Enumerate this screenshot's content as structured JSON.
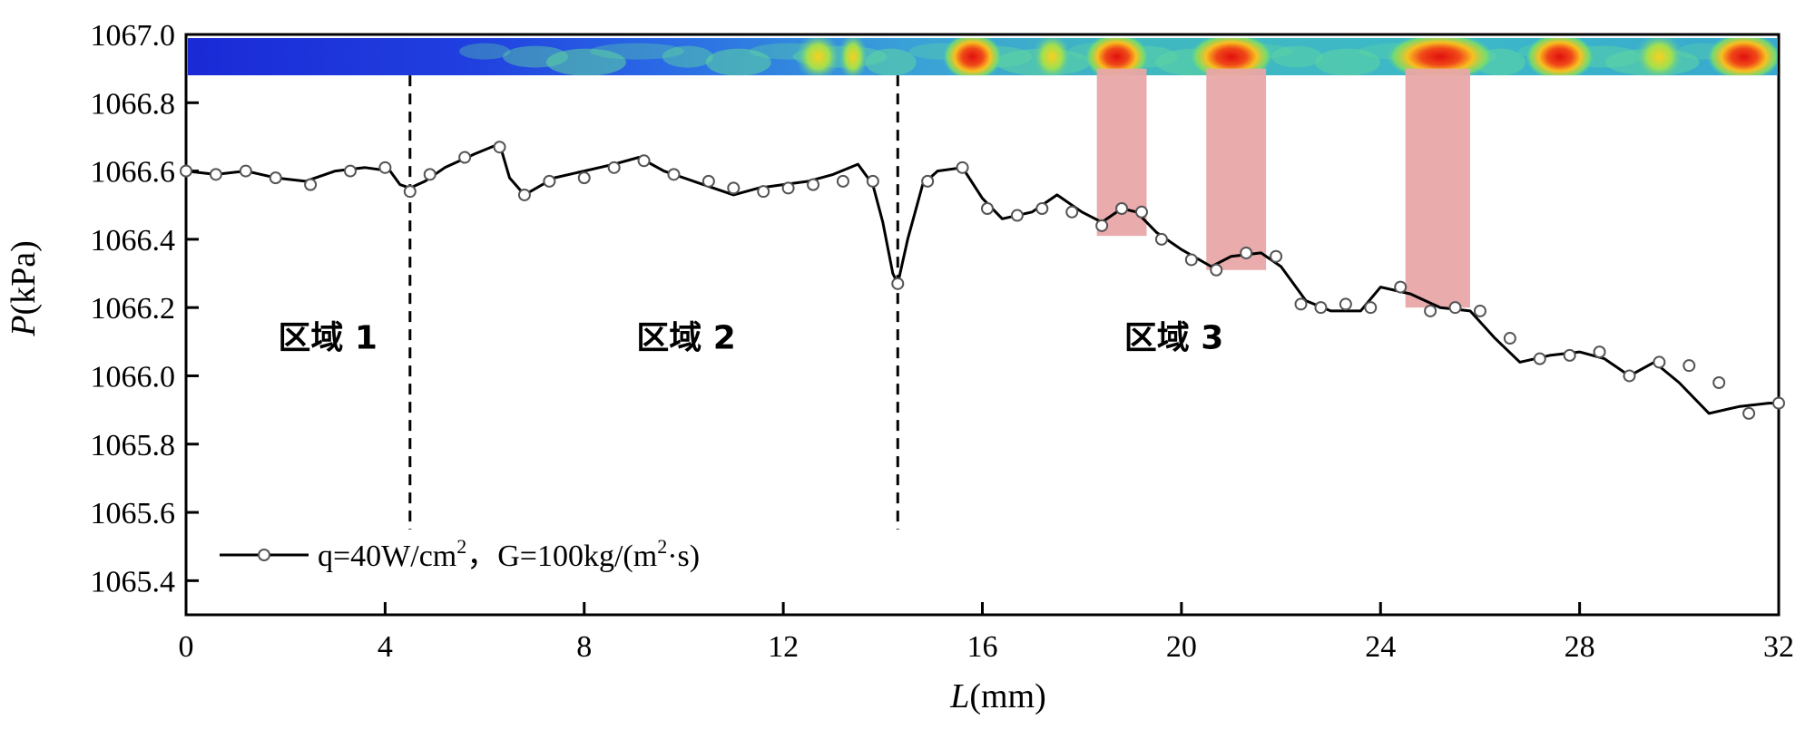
{
  "chart_data": {
    "type": "line",
    "xlabel_var": "L",
    "xlabel_unit": "(mm)",
    "ylabel_var": "P",
    "ylabel_unit": "(kPa)",
    "xlim": [
      0,
      32
    ],
    "ylim": [
      1065.3,
      1067.0
    ],
    "x_ticks": [
      0,
      4,
      8,
      12,
      16,
      20,
      24,
      28,
      32
    ],
    "x_tick_labels": [
      "0",
      "4",
      "8",
      "12",
      "16",
      "20",
      "24",
      "28",
      "32"
    ],
    "y_ticks": [
      1065.4,
      1065.6,
      1065.8,
      1066.0,
      1066.2,
      1066.4,
      1066.6,
      1066.8,
      1067.0
    ],
    "y_tick_labels": [
      "1065.4",
      "1065.6",
      "1065.8",
      "1066.0",
      "1066.2",
      "1066.4",
      "1066.6",
      "1066.8",
      "1067.0"
    ],
    "grid": false,
    "legend": {
      "position": "bottom-left",
      "label_main": "q=40W/cm",
      "label_sup1": "2",
      "label_mid": "，G=100kg/(m",
      "label_sup2": "2",
      "label_end": "·s)"
    },
    "series": [
      {
        "name": "q=40W/cm2，G=100kg/(m2·s)",
        "color": "#000000",
        "marker": "open-circle",
        "x": [
          0.0,
          0.6,
          1.2,
          1.8,
          2.4,
          3.0,
          3.6,
          4.1,
          4.3,
          4.5,
          4.8,
          5.2,
          5.8,
          6.3,
          6.5,
          6.8,
          7.4,
          8.0,
          8.6,
          9.1,
          9.6,
          10.2,
          10.6,
          11.0,
          11.5,
          12.0,
          12.5,
          13.0,
          13.5,
          13.8,
          14.0,
          14.2,
          14.3,
          14.5,
          14.8,
          15.1,
          15.6,
          16.0,
          16.4,
          17.0,
          17.5,
          18.0,
          18.4,
          18.8,
          19.1,
          19.5,
          20.0,
          20.6,
          21.0,
          21.6,
          22.0,
          22.5,
          23.0,
          23.6,
          24.0,
          24.6,
          25.2,
          25.8,
          26.3,
          26.8,
          27.4,
          28.0,
          28.5,
          29.0,
          29.5,
          30.0,
          30.6,
          31.2,
          31.8,
          32.0
        ],
        "y": [
          1066.6,
          1066.59,
          1066.6,
          1066.58,
          1066.57,
          1066.6,
          1066.61,
          1066.6,
          1066.56,
          1066.55,
          1066.57,
          1066.61,
          1066.65,
          1066.68,
          1066.58,
          1066.53,
          1066.58,
          1066.6,
          1066.62,
          1066.64,
          1066.6,
          1066.57,
          1066.55,
          1066.53,
          1066.55,
          1066.56,
          1066.57,
          1066.59,
          1066.62,
          1066.56,
          1066.45,
          1066.3,
          1066.27,
          1066.4,
          1066.56,
          1066.6,
          1066.61,
          1066.52,
          1066.46,
          1066.48,
          1066.53,
          1066.48,
          1066.45,
          1066.49,
          1066.48,
          1066.42,
          1066.37,
          1066.32,
          1066.35,
          1066.36,
          1066.32,
          1066.22,
          1066.19,
          1066.19,
          1066.26,
          1066.24,
          1066.2,
          1066.19,
          1066.11,
          1066.04,
          1066.06,
          1066.07,
          1066.05,
          1066.0,
          1066.04,
          1065.98,
          1065.89,
          1065.91,
          1065.92,
          1065.92
        ],
        "marker_x": [
          0.0,
          0.6,
          1.2,
          1.8,
          2.5,
          3.3,
          4.0,
          4.5,
          4.9,
          5.6,
          6.3,
          6.8,
          7.3,
          8.0,
          8.6,
          9.2,
          9.8,
          10.5,
          11.0,
          11.6,
          12.1,
          12.6,
          13.2,
          13.8,
          14.3,
          14.9,
          15.6,
          16.1,
          16.7,
          17.2,
          17.8,
          18.4,
          18.8,
          19.2,
          19.6,
          20.2,
          20.7,
          21.3,
          21.9,
          22.4,
          22.8,
          23.3,
          23.8,
          24.4,
          25.0,
          25.5,
          26.0,
          26.6,
          27.2,
          27.8,
          28.4,
          29.0,
          29.6,
          30.2,
          30.8,
          31.4,
          32.0
        ],
        "marker_y": [
          1066.6,
          1066.59,
          1066.6,
          1066.58,
          1066.56,
          1066.6,
          1066.61,
          1066.54,
          1066.59,
          1066.64,
          1066.67,
          1066.53,
          1066.57,
          1066.58,
          1066.61,
          1066.63,
          1066.59,
          1066.57,
          1066.55,
          1066.54,
          1066.55,
          1066.56,
          1066.57,
          1066.57,
          1066.27,
          1066.57,
          1066.61,
          1066.49,
          1066.47,
          1066.49,
          1066.48,
          1066.44,
          1066.49,
          1066.48,
          1066.4,
          1066.34,
          1066.31,
          1066.36,
          1066.35,
          1066.21,
          1066.2,
          1066.21,
          1066.2,
          1066.26,
          1066.19,
          1066.2,
          1066.19,
          1066.11,
          1066.05,
          1066.06,
          1066.07,
          1066.0,
          1066.04,
          1066.03,
          1065.98,
          1065.89,
          1065.92
        ],
        "hidden_note": ""
      }
    ],
    "region_dividers_x": [
      4.5,
      14.3
    ],
    "region_labels": [
      {
        "text": "区域 1",
        "x": 2.3,
        "y": 1066.08
      },
      {
        "text": "区域 2",
        "x": 9.5,
        "y": 1066.08
      },
      {
        "text": "区域 3",
        "x": 19.3,
        "y": 1066.08
      }
    ],
    "highlight_bands": [
      {
        "x0": 18.3,
        "x1": 19.3,
        "y0": 1066.41,
        "y1": 1066.9,
        "color": "#e8a6a6"
      },
      {
        "x0": 20.5,
        "x1": 21.7,
        "y0": 1066.31,
        "y1": 1066.9,
        "color": "#e8a6a6"
      },
      {
        "x0": 24.5,
        "x1": 25.8,
        "y0": 1066.2,
        "y1": 1066.9,
        "color": "#e8a6a6"
      }
    ],
    "void_fraction_strip": {
      "y0": 1066.88,
      "y1": 1067.0,
      "hot_spots": [
        {
          "x": 12.7,
          "w": 0.9,
          "level": 0.6
        },
        {
          "x": 13.4,
          "w": 0.6,
          "level": 0.75
        },
        {
          "x": 15.8,
          "w": 1.2,
          "level": 0.95
        },
        {
          "x": 17.4,
          "w": 0.8,
          "level": 0.5
        },
        {
          "x": 18.7,
          "w": 1.3,
          "level": 1.0
        },
        {
          "x": 21.0,
          "w": 1.7,
          "level": 1.0
        },
        {
          "x": 25.2,
          "w": 2.2,
          "level": 1.0
        },
        {
          "x": 27.6,
          "w": 1.4,
          "level": 0.85
        },
        {
          "x": 29.6,
          "w": 1.0,
          "level": 0.6
        },
        {
          "x": 31.3,
          "w": 1.5,
          "level": 1.0
        }
      ]
    }
  }
}
